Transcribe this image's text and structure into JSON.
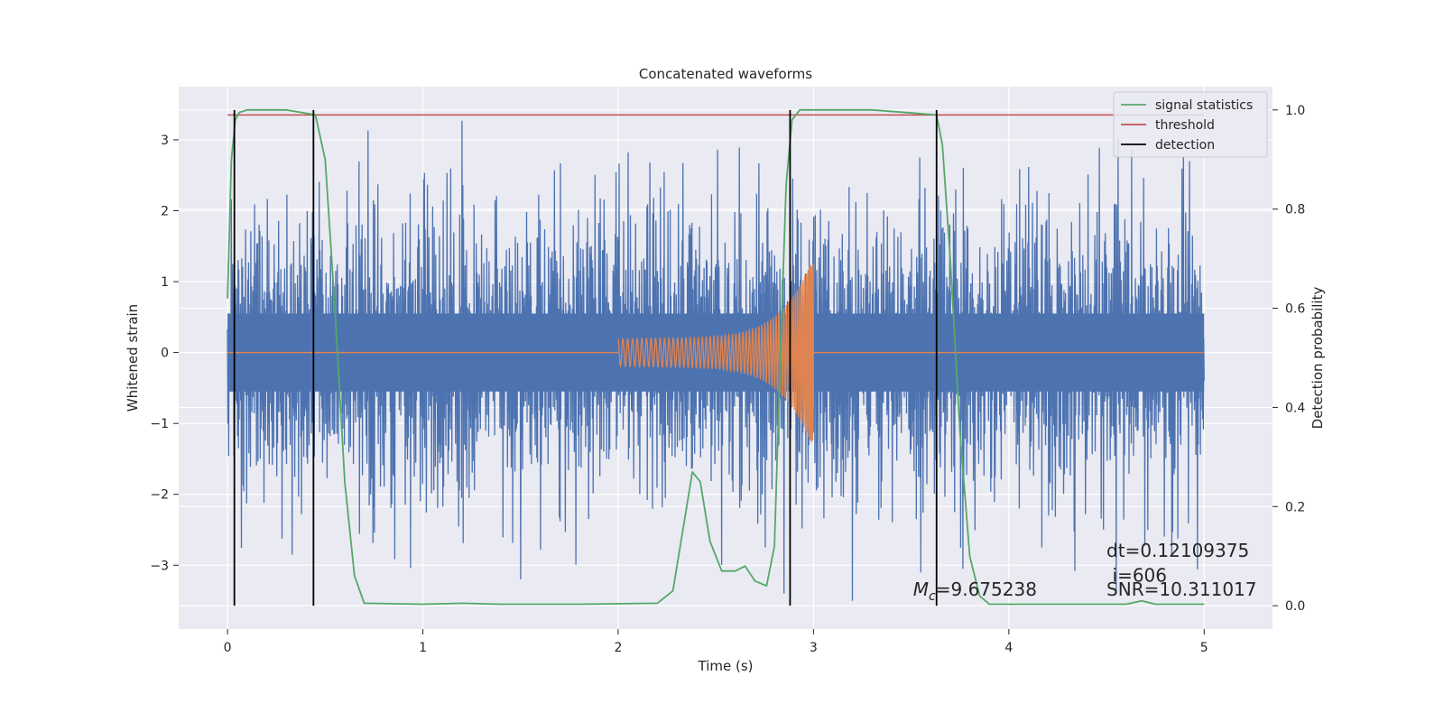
{
  "chart_data": {
    "type": "line",
    "title": "Concatenated waveforms",
    "xlabel": "Time (s)",
    "ylabel": "Whitened strain",
    "y2label": "Detection probability",
    "xlim": [
      -0.25,
      5.35
    ],
    "ylim": [
      -3.9,
      3.75
    ],
    "y2lim": [
      -0.047,
      1.047
    ],
    "xticks": [
      0,
      1,
      2,
      3,
      4,
      5
    ],
    "yticks": [
      -3,
      -2,
      -1,
      0,
      1,
      2,
      3
    ],
    "y2ticks": [
      0.0,
      0.2,
      0.4,
      0.6,
      0.8,
      1.0
    ],
    "xtick_labels": [
      "0",
      "1",
      "2",
      "3",
      "4",
      "5"
    ],
    "ytick_labels": [
      "−3",
      "−2",
      "−1",
      "0",
      "1",
      "2",
      "3"
    ],
    "y2tick_labels": [
      "0.0",
      "0.2",
      "0.4",
      "0.6",
      "0.8",
      "1.0"
    ],
    "grid": true,
    "legend_position": "top-right",
    "colors": {
      "strain": "#4c72b0",
      "template": "#dd8452",
      "signal_statistics": "#55a868",
      "threshold": "#c44e52",
      "detection": "#000000",
      "axes_background": "#eaeaf2",
      "grid": "#ffffff"
    },
    "series": [
      {
        "name": "signal statistics",
        "axis": "right",
        "x": [
          0,
          0.02,
          0.04,
          0.06,
          0.1,
          0.3,
          0.45,
          0.5,
          0.55,
          0.6,
          0.65,
          0.7,
          1.0,
          1.2,
          1.4,
          1.8,
          2.2,
          2.28,
          2.33,
          2.38,
          2.42,
          2.47,
          2.53,
          2.6,
          2.65,
          2.7,
          2.76,
          2.8,
          2.83,
          2.86,
          2.89,
          2.93,
          3.0,
          3.3,
          3.63,
          3.66,
          3.7,
          3.75,
          3.8,
          3.85,
          3.9,
          4.3,
          4.6,
          4.68,
          4.75,
          5.0
        ],
        "y": [
          0.62,
          0.9,
          0.98,
          0.995,
          1.0,
          1.0,
          0.99,
          0.9,
          0.6,
          0.25,
          0.06,
          0.005,
          0.003,
          0.005,
          0.003,
          0.003,
          0.005,
          0.03,
          0.15,
          0.27,
          0.25,
          0.13,
          0.07,
          0.07,
          0.08,
          0.05,
          0.04,
          0.12,
          0.5,
          0.85,
          0.98,
          1.0,
          1.0,
          1.0,
          0.99,
          0.93,
          0.7,
          0.35,
          0.1,
          0.02,
          0.003,
          0.003,
          0.003,
          0.01,
          0.003,
          0.003
        ]
      },
      {
        "name": "threshold",
        "axis": "right",
        "x": [
          0,
          5
        ],
        "y": [
          0.99,
          0.99
        ]
      },
      {
        "name": "detection",
        "axis": "right",
        "type": "vlines",
        "x": [
          0.035,
          0.44,
          2.88,
          3.63
        ],
        "ymin": 0.0,
        "ymax": 1.0
      }
    ],
    "strain": {
      "axis": "left",
      "x_start": 0,
      "x_end": 5,
      "envelope_min": -2.5,
      "envelope_max": 2.5,
      "peaks": [
        {
          "x": 1.2,
          "y": 3.27
        },
        {
          "x": 0.72,
          "y": 3.13
        },
        {
          "x": 4.56,
          "y": 3.0
        },
        {
          "x": 0.33,
          "y": -2.85
        },
        {
          "x": 1.5,
          "y": -3.2
        },
        {
          "x": 2.85,
          "y": -3.4
        },
        {
          "x": 3.2,
          "y": -3.5
        },
        {
          "x": 4.55,
          "y": -3.35
        },
        {
          "x": 3.55,
          "y": -3.1
        }
      ]
    },
    "template": {
      "axis": "left",
      "x_start": 2.0,
      "x_end": 3.0,
      "amp_start": 0.23,
      "amp_end": 1.35
    },
    "annotations": {
      "dt": "dt=0.12109375",
      "i": "i=606",
      "mc_symbol": "M",
      "mc_sub": "c",
      "mc_value": "=9.675238",
      "snr": "SNR=10.311017"
    }
  }
}
